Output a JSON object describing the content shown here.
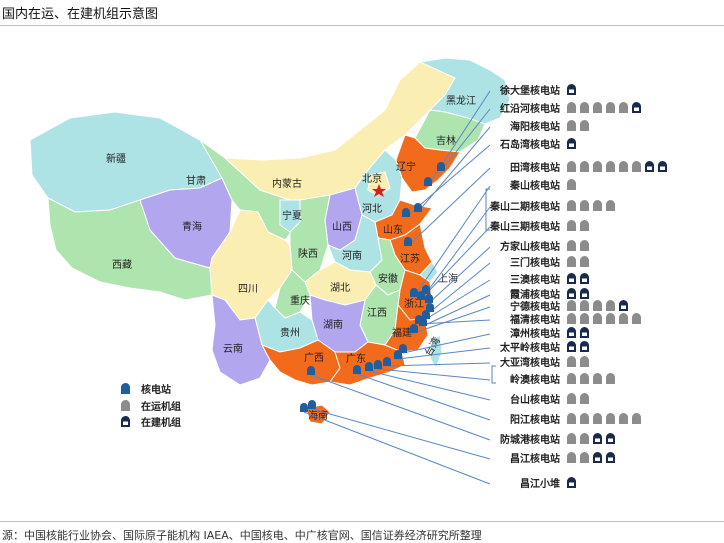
{
  "title": "国内在运、在建机组示意图",
  "source": "源：中国核能行业协会、国际原子能机构 IAEA、中国核电、中广核官网、国信证券经济研究所整理",
  "colors": {
    "orange": "#f26b1d",
    "marker": "#1f5fa0",
    "grey": "#8c8c8c",
    "navy": "#1a2a4e",
    "line": "#5a86c5"
  },
  "provinces": {
    "heilongjiang": "黑龙江",
    "jilin": "吉林",
    "liaoning": "辽宁",
    "neimenggu": "内蒙古",
    "xinjiang": "新疆",
    "xizang": "西藏",
    "qinghai": "青海",
    "gansu": "甘肃",
    "ningxia": "宁夏",
    "shaanxi": "陕西",
    "shanxi": "山西",
    "hebei": "河北",
    "beijing": "北京",
    "shandong": "山东",
    "henan": "河南",
    "jiangsu": "江苏",
    "anhui": "安徽",
    "shanghai": "上海",
    "hubei": "湖北",
    "sichuan": "四川",
    "chongqing": "重庆",
    "zhejiang": "浙江",
    "jiangxi": "江西",
    "hunan": "湖南",
    "guizhou": "贵州",
    "yunnan": "云南",
    "guangxi": "广西",
    "guangdong": "广东",
    "fujian": "福建",
    "taiwan": "台湾",
    "hainan": "海南"
  },
  "legend": [
    {
      "label": "核电站",
      "icon": "plant-marker-icon"
    },
    {
      "label": "在运机组",
      "icon": "operating-unit-icon"
    },
    {
      "label": "在建机组",
      "icon": "construction-unit-icon"
    }
  ],
  "plants": [
    {
      "name": "徐大堡核电站",
      "operating": 0,
      "construction": 1
    },
    {
      "name": "红沿河核电站",
      "operating": 5,
      "construction": 1
    },
    {
      "name": "海阳核电站",
      "operating": 2,
      "construction": 0
    },
    {
      "name": "石岛湾核电站",
      "operating": 0,
      "construction": 1
    },
    {
      "name": "田湾核电站",
      "operating": 6,
      "construction": 2
    },
    {
      "name": "秦山核电站",
      "operating": 1,
      "construction": 0
    },
    {
      "name": "秦山二期核电站",
      "operating": 4,
      "construction": 0
    },
    {
      "name": "秦山三期核电站",
      "operating": 2,
      "construction": 0
    },
    {
      "name": "方家山核电站",
      "operating": 2,
      "construction": 0
    },
    {
      "name": "三门核电站",
      "operating": 2,
      "construction": 0
    },
    {
      "name": "三澳核电站",
      "operating": 0,
      "construction": 2
    },
    {
      "name": "霞浦核电站",
      "operating": 0,
      "construction": 2
    },
    {
      "name": "宁德核电站",
      "operating": 4,
      "construction": 1
    },
    {
      "name": "福清核电站",
      "operating": 6,
      "construction": 0
    },
    {
      "name": "漳州核电站",
      "operating": 0,
      "construction": 2
    },
    {
      "name": "太平岭核电站",
      "operating": 0,
      "construction": 2
    },
    {
      "name": "大亚湾核电站",
      "operating": 2,
      "construction": 0
    },
    {
      "name": "岭澳核电站",
      "operating": 4,
      "construction": 0
    },
    {
      "name": "台山核电站",
      "operating": 2,
      "construction": 0
    },
    {
      "name": "阳江核电站",
      "operating": 6,
      "construction": 0
    },
    {
      "name": "防城港核电站",
      "operating": 2,
      "construction": 2
    },
    {
      "name": "昌江核电站",
      "operating": 2,
      "construction": 2
    },
    {
      "name": "昌江小堆",
      "operating": 0,
      "construction": 1
    }
  ]
}
